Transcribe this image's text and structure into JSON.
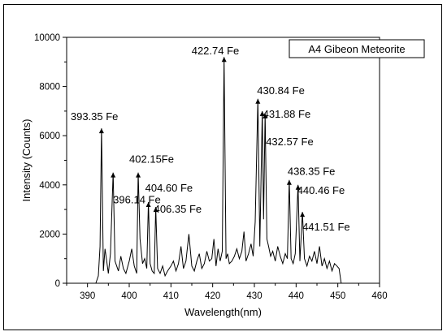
{
  "chart_data": {
    "type": "line",
    "title": "A4 Gibeon Meteorite",
    "xlabel": "Wavelength(nm)",
    "ylabel": "Intensity (Counts)",
    "xlim": [
      385,
      460
    ],
    "ylim": [
      0,
      10000
    ],
    "xticks": [
      390,
      400,
      410,
      420,
      430,
      440,
      450,
      460
    ],
    "yticks": [
      0,
      2000,
      4000,
      6000,
      8000,
      10000
    ],
    "line_color": "#000000",
    "labeled_peaks": [
      {
        "x": 393.35,
        "y": 6300,
        "label": "393.35 Fe"
      },
      {
        "x": 396.14,
        "y": 4500,
        "label": "396.14 Fe"
      },
      {
        "x": 402.15,
        "y": 4500,
        "label": "402.15Fe"
      },
      {
        "x": 404.6,
        "y": 3300,
        "label": "404.60 Fe"
      },
      {
        "x": 406.35,
        "y": 3100,
        "label": "406.35 Fe"
      },
      {
        "x": 422.74,
        "y": 9200,
        "label": "422.74 Fe"
      },
      {
        "x": 430.84,
        "y": 7500,
        "label": "430.84 Fe"
      },
      {
        "x": 431.88,
        "y": 7000,
        "label": "431.88 Fe"
      },
      {
        "x": 432.57,
        "y": 6900,
        "label": "432.57 Fe"
      },
      {
        "x": 438.35,
        "y": 4200,
        "label": "438.35 Fe"
      },
      {
        "x": 440.46,
        "y": 4000,
        "label": "440.46 Fe"
      },
      {
        "x": 441.51,
        "y": 2900,
        "label": "441.51 Fe"
      }
    ],
    "series": [
      {
        "x": [
          385.0,
          392.0,
          392.6,
          393.0,
          393.35,
          393.8,
          394.2,
          394.6,
          395.0,
          395.5,
          396.14,
          396.6,
          397.0,
          397.4,
          398.0,
          398.6,
          399.2,
          400.0,
          400.6,
          401.2,
          401.8,
          402.15,
          402.6,
          403.2,
          403.7,
          404.2,
          404.6,
          405.0,
          405.5,
          406.0,
          406.35,
          406.8,
          407.4,
          408.0,
          408.6,
          409.2,
          410.0,
          410.6,
          411.2,
          411.8,
          412.4,
          413.0,
          413.6,
          414.3,
          415.0,
          415.6,
          416.2,
          416.8,
          417.4,
          418.0,
          418.6,
          419.2,
          419.8,
          420.3,
          420.8,
          421.3,
          421.8,
          422.3,
          422.74,
          423.2,
          423.6,
          424.0,
          424.6,
          425.2,
          425.8,
          426.4,
          427.0,
          427.5,
          428.0,
          428.6,
          429.2,
          429.7,
          430.2,
          430.84,
          431.3,
          431.88,
          432.2,
          432.57,
          433.0,
          433.4,
          433.9,
          434.4,
          435.0,
          435.6,
          436.2,
          436.8,
          437.4,
          437.9,
          438.35,
          438.8,
          439.3,
          439.8,
          440.46,
          440.9,
          441.51,
          442.0,
          442.6,
          443.2,
          443.8,
          444.4,
          445.0,
          445.6,
          446.2,
          446.8,
          447.4,
          448.0,
          448.6,
          449.2,
          449.8,
          450.3,
          450.8,
          460.0
        ],
        "y": [
          0,
          0,
          300,
          1500,
          6300,
          500,
          1400,
          900,
          400,
          1200,
          4500,
          900,
          700,
          500,
          1100,
          600,
          400,
          900,
          1400,
          700,
          400,
          4500,
          1800,
          800,
          1000,
          600,
          3300,
          800,
          500,
          400,
          3100,
          600,
          400,
          700,
          300,
          500,
          700,
          900,
          500,
          800,
          1500,
          600,
          900,
          2000,
          700,
          500,
          900,
          1200,
          600,
          800,
          1300,
          900,
          1000,
          1800,
          700,
          1400,
          900,
          1300,
          9200,
          1000,
          1200,
          800,
          900,
          1100,
          1400,
          1000,
          1300,
          2100,
          900,
          1200,
          1600,
          1100,
          2500,
          7500,
          1500,
          7000,
          2600,
          6900,
          1800,
          1500,
          1100,
          1300,
          900,
          1500,
          1100,
          800,
          1200,
          1000,
          4200,
          1000,
          800,
          1200,
          4000,
          900,
          2900,
          1000,
          700,
          1100,
          900,
          1300,
          800,
          1500,
          700,
          1000,
          600,
          900,
          500,
          800,
          700,
          600,
          0,
          0
        ]
      }
    ]
  }
}
